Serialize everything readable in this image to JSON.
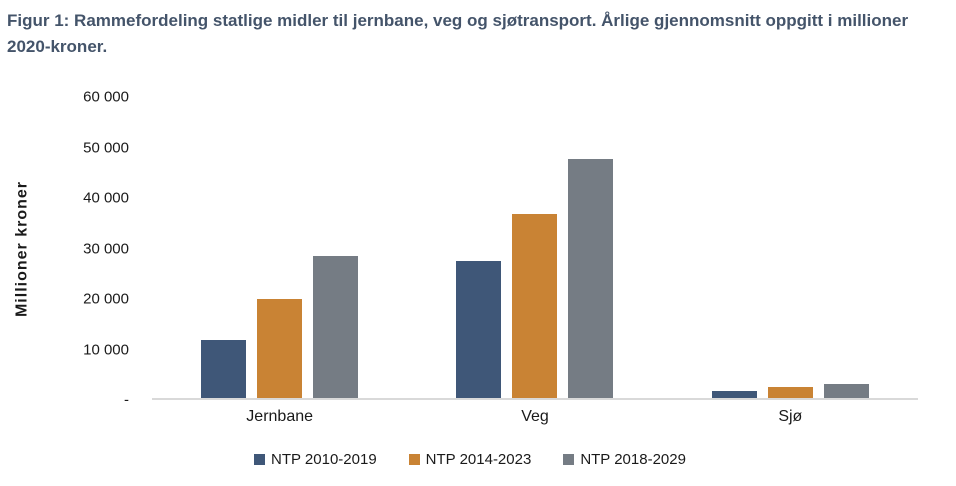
{
  "figure": {
    "title": "Figur 1: Rammefordeling statlige midler til jernbane, veg og sjøtransport. Årlige gjennomsnitt oppgitt i millioner 2020-kroner."
  },
  "chart_data": {
    "type": "bar",
    "title": "Figur 1: Rammefordeling statlige midler til jernbane, veg og sjøtransport. Årlige gjennomsnitt oppgitt i millioner 2020-kroner.",
    "categories": [
      "Jernbane",
      "Veg",
      "Sjø"
    ],
    "series": [
      {
        "name": "NTP 2010-2019",
        "color": "#3F5778",
        "values": [
          11500,
          27400,
          1300
        ]
      },
      {
        "name": "NTP 2014-2023",
        "color": "#C98334",
        "values": [
          19700,
          36600,
          2200
        ]
      },
      {
        "name": "NTP 2018-2029",
        "color": "#757C84",
        "values": [
          28400,
          47700,
          2800
        ]
      }
    ],
    "xlabel": "",
    "ylabel": "Millioner kroner",
    "ylim": [
      0,
      60000
    ],
    "yticks": [
      {
        "value": 60000,
        "label": "60 000"
      },
      {
        "value": 50000,
        "label": "50 000"
      },
      {
        "value": 40000,
        "label": "40 000"
      },
      {
        "value": 30000,
        "label": "30 000"
      },
      {
        "value": 20000,
        "label": "20 000"
      },
      {
        "value": 10000,
        "label": "10 000"
      },
      {
        "value": 0,
        "label": "-"
      }
    ],
    "grid": false,
    "legend_position": "bottom"
  },
  "colors": {
    "title_text": "#44546A",
    "axis_text": "#1A1A1A",
    "axis_line": "#D9D9D9",
    "background": "#FFFFFF"
  }
}
